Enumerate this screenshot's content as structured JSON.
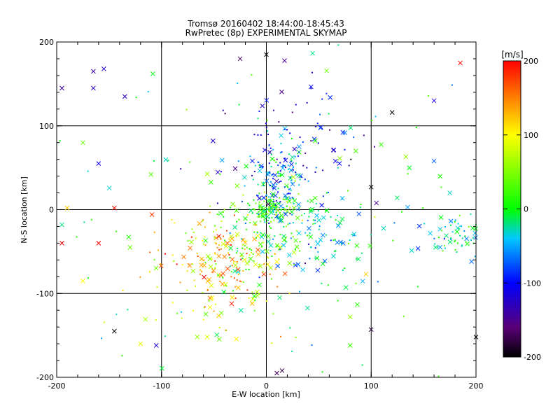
{
  "chart_data": {
    "type": "scatter",
    "title": "Tromsø 20160402 18:44:00-18:45:43",
    "subtitle": "RwPretec (8p) EXPERIMENTAL SKYMAP",
    "xlabel": "E-W location [km]",
    "ylabel": "N-S location [km]",
    "xlim": [
      -200,
      200
    ],
    "ylim": [
      -200,
      200
    ],
    "xticks": [
      -200,
      -100,
      0,
      100,
      200
    ],
    "yticks": [
      -200,
      -100,
      0,
      100,
      200
    ],
    "grid": true,
    "colorbar": {
      "label": "[m/s]",
      "range": [
        -200,
        200
      ],
      "ticks": [
        200,
        100,
        0,
        -100,
        -200
      ],
      "colormap": "black-purple-blue-cyan-green-yellow-red"
    },
    "clusters": [
      {
        "x": 5,
        "y": 2,
        "sx": 10,
        "sy": 8,
        "v": 10,
        "n": 100
      },
      {
        "x": 10,
        "y": 30,
        "sx": 15,
        "sy": 25,
        "v": -55,
        "n": 140
      },
      {
        "x": 20,
        "y": 80,
        "sx": 40,
        "sy": 35,
        "v": -110,
        "n": 90
      },
      {
        "x": 40,
        "y": -30,
        "sx": 35,
        "sy": 30,
        "v": -30,
        "n": 120
      },
      {
        "x": -40,
        "y": -60,
        "sx": 30,
        "sy": 25,
        "v": 140,
        "n": 130
      },
      {
        "x": -50,
        "y": -110,
        "sx": 40,
        "sy": 30,
        "v": 80,
        "n": 60
      },
      {
        "x": -15,
        "y": -30,
        "sx": 25,
        "sy": 30,
        "v": 30,
        "n": 100
      },
      {
        "x": 185,
        "y": -30,
        "sx": 20,
        "sy": 12,
        "v": -25,
        "n": 80
      },
      {
        "x": 0,
        "y": 0,
        "sx": 120,
        "sy": 110,
        "v": 0,
        "n": 130
      }
    ],
    "outlier_points": [
      {
        "x": -165,
        "y": 165,
        "v": -140
      },
      {
        "x": -155,
        "y": 168,
        "v": -120
      },
      {
        "x": -165,
        "y": 145,
        "v": -130
      },
      {
        "x": -195,
        "y": 145,
        "v": -140
      },
      {
        "x": -135,
        "y": 135,
        "v": -130
      },
      {
        "x": -160,
        "y": 55,
        "v": -110
      },
      {
        "x": 185,
        "y": 175,
        "v": 200
      },
      {
        "x": 160,
        "y": 130,
        "v": -120
      },
      {
        "x": 160,
        "y": 58,
        "v": -70
      },
      {
        "x": 175,
        "y": 20,
        "v": -30
      },
      {
        "x": 105,
        "y": 8,
        "v": -150
      },
      {
        "x": 100,
        "y": 27,
        "v": -210
      },
      {
        "x": -195,
        "y": -40,
        "v": 200
      },
      {
        "x": -195,
        "y": -18,
        "v": -20
      },
      {
        "x": -145,
        "y": 2,
        "v": 195
      },
      {
        "x": -160,
        "y": -40,
        "v": 200
      },
      {
        "x": -175,
        "y": -85,
        "v": 100
      },
      {
        "x": -190,
        "y": 2,
        "v": 120
      },
      {
        "x": -175,
        "y": 80,
        "v": 40
      },
      {
        "x": -110,
        "y": 42,
        "v": 30
      },
      {
        "x": -130,
        "y": -45,
        "v": 40
      },
      {
        "x": -120,
        "y": -160,
        "v": 90
      },
      {
        "x": -105,
        "y": -162,
        "v": -120
      },
      {
        "x": 100,
        "y": -143,
        "v": -180
      },
      {
        "x": 200,
        "y": -152,
        "v": -210
      },
      {
        "x": 10,
        "y": -195,
        "v": -170
      },
      {
        "x": 15,
        "y": -192,
        "v": -180
      },
      {
        "x": 80,
        "y": -128,
        "v": 60
      },
      {
        "x": 80,
        "y": -162,
        "v": 20
      },
      {
        "x": 0,
        "y": 185,
        "v": -200
      },
      {
        "x": -25,
        "y": 180,
        "v": -170
      },
      {
        "x": 120,
        "y": 116,
        "v": -210
      },
      {
        "x": 95,
        "y": -77,
        "v": 120
      },
      {
        "x": -145,
        "y": -145,
        "v": -200
      }
    ]
  }
}
